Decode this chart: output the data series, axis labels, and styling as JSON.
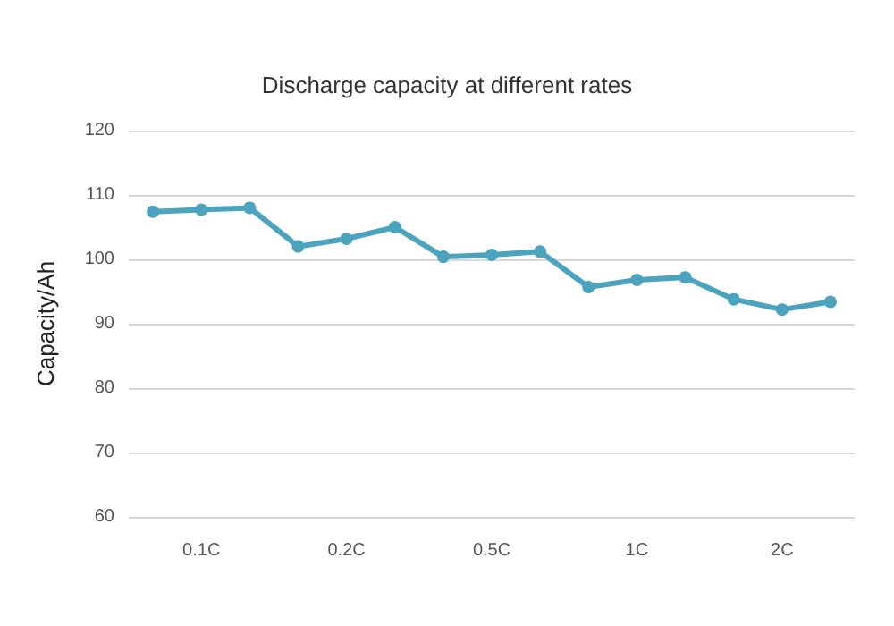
{
  "chart_data": {
    "type": "line",
    "title": "Discharge capacity at different rates",
    "ylabel": "Capacity/Ah",
    "categories": [
      null,
      "0.1C",
      null,
      null,
      "0.2C",
      null,
      null,
      "0.5C",
      null,
      null,
      "1C",
      null,
      null,
      "2C",
      null
    ],
    "series": [
      {
        "color": "#4ba3bd",
        "values": [
          107.4,
          107.7,
          108,
          102,
          103.2,
          105,
          100.4,
          100.7,
          101.2,
          95.7,
          96.8,
          97.2,
          93.8,
          92.2,
          93.4
        ]
      }
    ],
    "ylim": [
      60,
      120
    ],
    "yticks": [
      60,
      70,
      80,
      90,
      100,
      110,
      120
    ],
    "grid": "y",
    "marker": "circle",
    "line_style": "solid"
  }
}
